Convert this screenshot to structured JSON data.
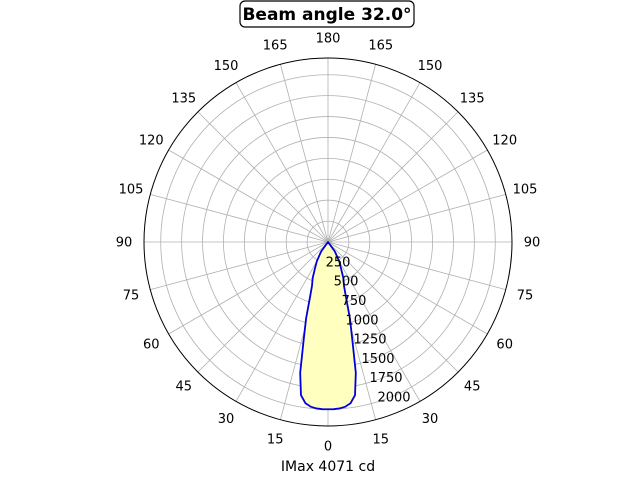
{
  "chart_data": {
    "type": "polar-line",
    "title": "Beam angle 32.0°",
    "xlabel": "IMax 4071 cd",
    "angle_tick_labels": [
      {
        "angle": 0,
        "label": "0"
      },
      {
        "angle": 15,
        "label": "15"
      },
      {
        "angle": 30,
        "label": "30"
      },
      {
        "angle": 45,
        "label": "45"
      },
      {
        "angle": 60,
        "label": "60"
      },
      {
        "angle": 75,
        "label": "75"
      },
      {
        "angle": 90,
        "label": "90"
      },
      {
        "angle": 105,
        "label": "105"
      },
      {
        "angle": 120,
        "label": "120"
      },
      {
        "angle": 135,
        "label": "135"
      },
      {
        "angle": 150,
        "label": "150"
      },
      {
        "angle": 165,
        "label": "165"
      },
      {
        "angle": 180,
        "label": "180"
      },
      {
        "angle": 195,
        "label": "165"
      },
      {
        "angle": 210,
        "label": "150"
      },
      {
        "angle": 225,
        "label": "135"
      },
      {
        "angle": 240,
        "label": "120"
      },
      {
        "angle": 255,
        "label": "105"
      },
      {
        "angle": 270,
        "label": "90"
      },
      {
        "angle": 285,
        "label": "75"
      },
      {
        "angle": 300,
        "label": "60"
      },
      {
        "angle": 315,
        "label": "45"
      },
      {
        "angle": 330,
        "label": "30"
      },
      {
        "angle": 345,
        "label": "15"
      }
    ],
    "radial_ticks": [
      250,
      500,
      750,
      1000,
      1250,
      1500,
      1750,
      2000
    ],
    "rmax": 2200,
    "grid": true,
    "series": [
      {
        "color": "#0000dd",
        "fill": "#ffffc0",
        "points": [
          {
            "angle": 0,
            "value": 2000
          },
          {
            "angle": 2,
            "value": 2000
          },
          {
            "angle": 4,
            "value": 1995
          },
          {
            "angle": 6,
            "value": 1980
          },
          {
            "angle": 8,
            "value": 1945
          },
          {
            "angle": 10,
            "value": 1860
          },
          {
            "angle": 12,
            "value": 1600
          },
          {
            "angle": 14,
            "value": 1200
          },
          {
            "angle": 16,
            "value": 950
          },
          {
            "angle": 18,
            "value": 700
          },
          {
            "angle": 20,
            "value": 560
          },
          {
            "angle": 23,
            "value": 470
          },
          {
            "angle": 26,
            "value": 360
          },
          {
            "angle": 30,
            "value": 270
          },
          {
            "angle": 36,
            "value": 140
          },
          {
            "angle": 45,
            "value": 0
          },
          {
            "angle": 315,
            "value": 0
          },
          {
            "angle": 324,
            "value": 140
          },
          {
            "angle": 330,
            "value": 270
          },
          {
            "angle": 334,
            "value": 360
          },
          {
            "angle": 337,
            "value": 470
          },
          {
            "angle": 340,
            "value": 560
          },
          {
            "angle": 342,
            "value": 700
          },
          {
            "angle": 344,
            "value": 950
          },
          {
            "angle": 346,
            "value": 1200
          },
          {
            "angle": 348,
            "value": 1600
          },
          {
            "angle": 350,
            "value": 1860
          },
          {
            "angle": 352,
            "value": 1945
          },
          {
            "angle": 354,
            "value": 1980
          },
          {
            "angle": 356,
            "value": 1995
          },
          {
            "angle": 358,
            "value": 2000
          }
        ]
      }
    ]
  }
}
